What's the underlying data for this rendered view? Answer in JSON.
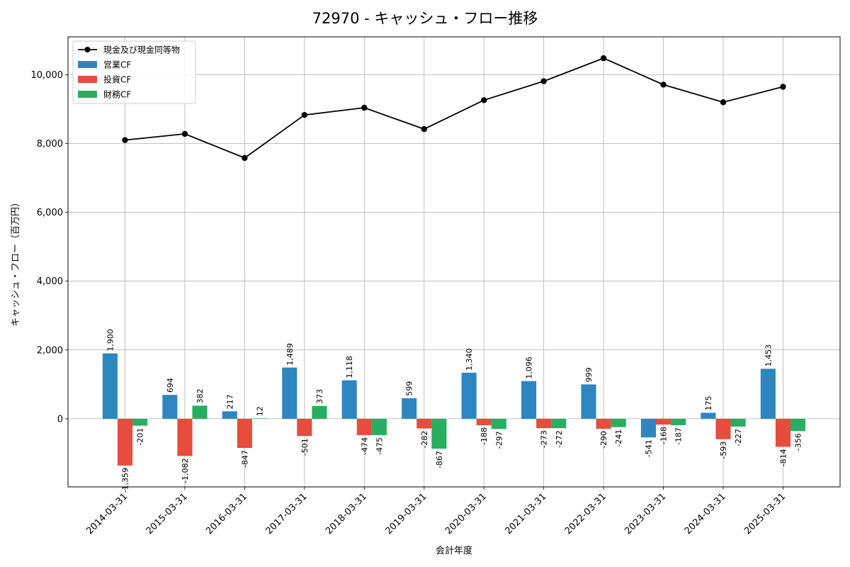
{
  "chart_data": {
    "type": "bar",
    "title": "72970 - キャッシュ・フロー推移",
    "xlabel": "会計年度",
    "ylabel": "キャッシュ・フロー（百万円）",
    "categories": [
      "2014-03-31",
      "2015-03-31",
      "2016-03-31",
      "2017-03-31",
      "2018-03-31",
      "2019-03-31",
      "2020-03-31",
      "2021-03-31",
      "2022-03-31",
      "2023-03-31",
      "2024-03-31",
      "2025-03-31"
    ],
    "ylim": [
      -1980,
      11100
    ],
    "yticks": [
      0,
      2000,
      4000,
      6000,
      8000,
      10000
    ],
    "ytick_labels": [
      "0",
      "2,000",
      "4,000",
      "6,000",
      "8,000",
      "10,000"
    ],
    "grid": true,
    "legend_position": "top-left",
    "line_series": {
      "name": "現金及び現金同等物",
      "color": "#000000",
      "values": [
        8100,
        8280,
        7580,
        8830,
        9040,
        8420,
        9260,
        9810,
        10480,
        9710,
        9200,
        9650
      ]
    },
    "series": [
      {
        "name": "営業CF",
        "color": "#2e86c1",
        "values": [
          1900,
          694,
          217,
          1489,
          1118,
          599,
          1340,
          1096,
          999,
          -541,
          175,
          1453
        ],
        "labels": [
          "1,900",
          "694",
          "217",
          "1,489",
          "1,118",
          "599",
          "1,340",
          "1,096",
          "999",
          "-541",
          "175",
          "1,453"
        ]
      },
      {
        "name": "投資CF",
        "color": "#e74c3c",
        "values": [
          -1359,
          -1082,
          -847,
          -501,
          -474,
          -282,
          -188,
          -273,
          -290,
          -168,
          -593,
          -814
        ],
        "labels": [
          "-1,359",
          "-1,082",
          "-847",
          "-501",
          "-474",
          "-282",
          "-188",
          "-273",
          "-290",
          "-168",
          "-593",
          "-814"
        ]
      },
      {
        "name": "財務CF",
        "color": "#27ae60",
        "values": [
          -201,
          382,
          12,
          373,
          -475,
          -867,
          -297,
          -272,
          -241,
          -187,
          -227,
          -356
        ],
        "labels": [
          "-201",
          "382",
          "12",
          "373",
          "-475",
          "-867",
          "-297",
          "-272",
          "-241",
          "-187",
          "-227",
          "-356"
        ]
      }
    ]
  }
}
